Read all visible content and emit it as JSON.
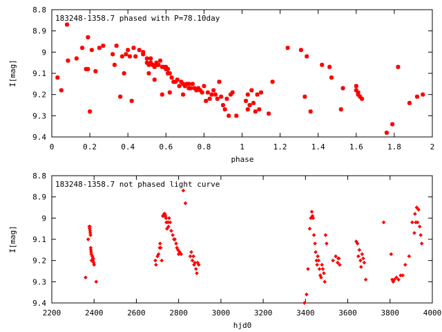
{
  "colors": {
    "marker": "#ff0000",
    "axis": "#000000",
    "background": "#ffffff"
  },
  "chart_data": [
    {
      "type": "scatter",
      "title": "183248-1358.7 phased with P=78.10day",
      "xlabel": "phase",
      "ylabel": "I[mag]",
      "xlim": [
        0,
        2
      ],
      "ylim": [
        9.4,
        8.8
      ],
      "y_inverted": true,
      "grid": false,
      "legend": "none",
      "marker": "star",
      "xticks": [
        "0",
        "0.2",
        "0.4",
        "0.6",
        "0.8",
        "1",
        "1.2",
        "1.4",
        "1.6",
        "1.8",
        "2"
      ],
      "yticks": [
        "8.8",
        "8.9",
        "9",
        "9.1",
        "9.2",
        "9.3",
        "9.4"
      ],
      "x": [
        0.03,
        0.05,
        0.08,
        0.085,
        0.13,
        0.16,
        0.18,
        0.19,
        0.19,
        0.2,
        0.21,
        0.23,
        0.25,
        0.27,
        0.32,
        0.33,
        0.34,
        0.36,
        0.37,
        0.38,
        0.39,
        0.4,
        0.41,
        0.42,
        0.43,
        0.44,
        0.46,
        0.48,
        0.48,
        0.5,
        0.5,
        0.51,
        0.51,
        0.52,
        0.52,
        0.53,
        0.53,
        0.54,
        0.54,
        0.55,
        0.55,
        0.56,
        0.56,
        0.57,
        0.58,
        0.58,
        0.59,
        0.6,
        0.6,
        0.61,
        0.61,
        0.62,
        0.62,
        0.63,
        0.64,
        0.65,
        0.66,
        0.67,
        0.68,
        0.69,
        0.69,
        0.7,
        0.71,
        0.72,
        0.72,
        0.73,
        0.74,
        0.75,
        0.76,
        0.77,
        0.78,
        0.79,
        0.8,
        0.81,
        0.82,
        0.83,
        0.84,
        0.85,
        0.86,
        0.87,
        0.88,
        0.89,
        0.9,
        0.91,
        0.92,
        0.93,
        0.94,
        0.95,
        0.97,
        1.02,
        1.03,
        1.03,
        1.04,
        1.05,
        1.06,
        1.07,
        1.08,
        1.09,
        1.1,
        1.14,
        1.16,
        1.24,
        1.31,
        1.33,
        1.34,
        1.36,
        1.42,
        1.46,
        1.47,
        1.52,
        1.53,
        1.6,
        1.6,
        1.61,
        1.61,
        1.62,
        1.63,
        1.76,
        1.79,
        1.82,
        1.88,
        1.92,
        1.95
      ],
      "y": [
        9.12,
        9.18,
        8.87,
        9.04,
        9.03,
        8.98,
        9.08,
        8.93,
        9.08,
        9.28,
        8.99,
        9.09,
        8.98,
        8.97,
        9.01,
        9.06,
        8.97,
        9.21,
        9.02,
        9.1,
        9.01,
        8.99,
        9.02,
        9.23,
        8.98,
        9.02,
        8.99,
        9.01,
        9.0,
        9.03,
        9.05,
        9.06,
        9.1,
        9.03,
        9.05,
        9.06,
        9.06,
        9.07,
        9.13,
        9.05,
        9.06,
        9.06,
        9.06,
        9.04,
        9.07,
        9.2,
        9.07,
        9.07,
        9.08,
        9.08,
        9.1,
        9.1,
        9.19,
        9.12,
        9.14,
        9.14,
        9.13,
        9.16,
        9.14,
        9.15,
        9.2,
        9.16,
        9.15,
        9.15,
        9.17,
        9.17,
        9.15,
        9.17,
        9.18,
        9.17,
        9.18,
        9.19,
        9.16,
        9.23,
        9.19,
        9.22,
        9.2,
        9.18,
        9.2,
        9.22,
        9.14,
        9.21,
        9.25,
        9.27,
        9.22,
        9.3,
        9.2,
        9.19,
        9.3,
        9.23,
        9.2,
        9.27,
        9.25,
        9.18,
        9.24,
        9.28,
        9.2,
        9.27,
        9.19,
        9.29,
        9.14,
        8.98,
        8.99,
        9.21,
        9.02,
        9.28,
        9.06,
        9.07,
        9.12,
        9.27,
        9.17,
        9.16,
        9.18,
        9.19,
        9.2,
        9.21,
        9.22,
        9.38,
        9.34,
        9.07,
        9.24,
        9.21,
        9.2
      ]
    },
    {
      "type": "scatter",
      "title": "183248-1358.7 not phased light curve",
      "xlabel": "hjd0",
      "ylabel": "I[mag]",
      "xlim": [
        2200,
        4000
      ],
      "ylim": [
        9.4,
        8.8
      ],
      "y_inverted": true,
      "grid": false,
      "legend": "none",
      "marker": "diamond",
      "xticks": [
        "2200",
        "2400",
        "2600",
        "2800",
        "3000",
        "3200",
        "3400",
        "3600",
        "3800",
        "4000"
      ],
      "yticks": [
        "8.8",
        "8.9",
        "9",
        "9.1",
        "9.2",
        "9.3",
        "9.4"
      ],
      "x": [
        2360,
        2372,
        2377,
        2379,
        2380,
        2381,
        2382,
        2383,
        2384,
        2385,
        2386,
        2387,
        2388,
        2392,
        2394,
        2395,
        2396,
        2398,
        2400,
        2410,
        2690,
        2693,
        2700,
        2705,
        2710,
        2712,
        2715,
        2720,
        2725,
        2728,
        2731,
        2735,
        2738,
        2740,
        2742,
        2745,
        2750,
        2752,
        2755,
        2760,
        2765,
        2772,
        2778,
        2782,
        2788,
        2792,
        2797,
        2800,
        2805,
        2812,
        2822,
        2832,
        2855,
        2860,
        2865,
        2870,
        2873,
        2877,
        2882,
        2886,
        2890,
        2895,
        3395,
        3405,
        3412,
        3420,
        3425,
        3430,
        3433,
        3436,
        3440,
        3445,
        3448,
        3452,
        3455,
        3458,
        3462,
        3466,
        3470,
        3474,
        3478,
        3482,
        3487,
        3491,
        3495,
        3500,
        3530,
        3543,
        3552,
        3555,
        3558,
        3562,
        3640,
        3646,
        3650,
        3655,
        3660,
        3663,
        3668,
        3673,
        3678,
        3685,
        3770,
        3805,
        3810,
        3815,
        3820,
        3830,
        3840,
        3850,
        3860,
        3872,
        3890,
        3905,
        3915,
        3918,
        3922,
        3926,
        3930,
        3935,
        3940,
        3945,
        3950
      ],
      "y": [
        9.28,
        9.1,
        9.04,
        9.05,
        9.04,
        9.06,
        9.07,
        9.08,
        9.14,
        9.15,
        9.16,
        9.17,
        9.2,
        9.18,
        9.19,
        9.2,
        9.19,
        9.21,
        9.22,
        9.3,
        9.2,
        9.22,
        9.18,
        9.17,
        9.14,
        9.12,
        9.14,
        9.2,
        8.99,
        8.99,
        8.98,
        8.98,
        8.99,
        9.0,
        9.02,
        9.05,
        9.02,
        9.04,
        9.0,
        9.02,
        9.06,
        9.08,
        9.1,
        9.1,
        9.12,
        9.14,
        9.15,
        9.17,
        9.16,
        9.17,
        8.87,
        8.93,
        9.18,
        9.16,
        9.2,
        9.18,
        9.22,
        9.21,
        9.24,
        9.26,
        9.21,
        9.22,
        9.4,
        9.36,
        9.24,
        9.05,
        9.0,
        8.97,
        8.99,
        9.0,
        9.08,
        9.12,
        9.16,
        9.2,
        9.22,
        9.18,
        9.2,
        9.24,
        9.27,
        9.28,
        9.22,
        9.24,
        9.26,
        9.3,
        9.08,
        9.12,
        9.2,
        9.18,
        9.21,
        9.19,
        9.19,
        9.22,
        9.11,
        9.12,
        9.18,
        9.15,
        9.2,
        9.23,
        9.17,
        9.19,
        9.21,
        9.29,
        9.02,
        9.17,
        9.29,
        9.3,
        9.29,
        9.28,
        9.29,
        9.27,
        9.27,
        9.22,
        9.18,
        9.02,
        9.07,
        8.98,
        9.02,
        8.95,
        9.02,
        8.96,
        9.04,
        9.08,
        9.12
      ]
    }
  ]
}
